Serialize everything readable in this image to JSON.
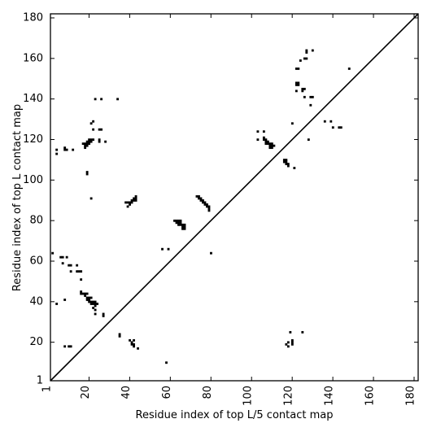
{
  "chart_data": {
    "type": "scatter",
    "title": "",
    "xlabel": "Residue index of top L/5 contact map",
    "ylabel": "Residue index of top L contact map",
    "xlim": [
      1,
      182
    ],
    "ylim": [
      1,
      182
    ],
    "xticks": [
      1,
      20,
      40,
      60,
      80,
      100,
      120,
      140,
      160,
      180
    ],
    "yticks": [
      1,
      20,
      40,
      60,
      80,
      100,
      120,
      140,
      160,
      180
    ],
    "grid": false,
    "diagonal": true,
    "marker": "square",
    "color": "#000000",
    "series": [
      {
        "points": [
          [
            2,
            64
          ],
          [
            4,
            39
          ],
          [
            6,
            62
          ],
          [
            7,
            62
          ],
          [
            7,
            59
          ],
          [
            8,
            41
          ],
          [
            8,
            18
          ],
          [
            9,
            62
          ],
          [
            10,
            58
          ],
          [
            10,
            18
          ],
          [
            11,
            58
          ],
          [
            11,
            55
          ],
          [
            11,
            18
          ],
          [
            14,
            58
          ],
          [
            14,
            55
          ],
          [
            15,
            55
          ],
          [
            16,
            55
          ],
          [
            16,
            51
          ],
          [
            16,
            45
          ],
          [
            16,
            44
          ],
          [
            17,
            44
          ],
          [
            18,
            44
          ],
          [
            18,
            43
          ],
          [
            19,
            44
          ],
          [
            19,
            42
          ],
          [
            19,
            41
          ],
          [
            20,
            42
          ],
          [
            20,
            41
          ],
          [
            20,
            40
          ],
          [
            21,
            42
          ],
          [
            21,
            40
          ],
          [
            21,
            39
          ],
          [
            22,
            40
          ],
          [
            22,
            39
          ],
          [
            22,
            37
          ],
          [
            23,
            40
          ],
          [
            23,
            39
          ],
          [
            23,
            38
          ],
          [
            23,
            36
          ],
          [
            24,
            39
          ],
          [
            23,
            34
          ],
          [
            27,
            34
          ],
          [
            27,
            33
          ],
          [
            4,
            115
          ],
          [
            4,
            113
          ],
          [
            8,
            116
          ],
          [
            8,
            115
          ],
          [
            9,
            115
          ],
          [
            12,
            115
          ],
          [
            17,
            118
          ],
          [
            18,
            118
          ],
          [
            18,
            117
          ],
          [
            18,
            116
          ],
          [
            19,
            119
          ],
          [
            19,
            118
          ],
          [
            19,
            117
          ],
          [
            20,
            120
          ],
          [
            20,
            119
          ],
          [
            20,
            118
          ],
          [
            21,
            120
          ],
          [
            21,
            119
          ],
          [
            22,
            120
          ],
          [
            21,
            128
          ],
          [
            22,
            129
          ],
          [
            22,
            125
          ],
          [
            25,
            125
          ],
          [
            26,
            125
          ],
          [
            25,
            120
          ],
          [
            25,
            119
          ],
          [
            28,
            119
          ],
          [
            23,
            140
          ],
          [
            26,
            140
          ],
          [
            34,
            140
          ],
          [
            19,
            104
          ],
          [
            19,
            103
          ],
          [
            21,
            91
          ],
          [
            38,
            89
          ],
          [
            39,
            89
          ],
          [
            39,
            87
          ],
          [
            40,
            89
          ],
          [
            40,
            88
          ],
          [
            41,
            90
          ],
          [
            41,
            89
          ],
          [
            42,
            91
          ],
          [
            42,
            90
          ],
          [
            43,
            92
          ],
          [
            43,
            91
          ],
          [
            43,
            90
          ],
          [
            35,
            24
          ],
          [
            35,
            23
          ],
          [
            40,
            21
          ],
          [
            41,
            20
          ],
          [
            41,
            19
          ],
          [
            42,
            21
          ],
          [
            42,
            19
          ],
          [
            42,
            18
          ],
          [
            44,
            17
          ],
          [
            58,
            10
          ],
          [
            56,
            66
          ],
          [
            59,
            66
          ],
          [
            62,
            80
          ],
          [
            63,
            80
          ],
          [
            63,
            79
          ],
          [
            64,
            80
          ],
          [
            64,
            79
          ],
          [
            64,
            78
          ],
          [
            65,
            80
          ],
          [
            65,
            79
          ],
          [
            65,
            78
          ],
          [
            66,
            78
          ],
          [
            66,
            77
          ],
          [
            66,
            76
          ],
          [
            67,
            78
          ],
          [
            67,
            77
          ],
          [
            67,
            76
          ],
          [
            73,
            92
          ],
          [
            74,
            92
          ],
          [
            74,
            91
          ],
          [
            75,
            91
          ],
          [
            75,
            90
          ],
          [
            76,
            90
          ],
          [
            76,
            89
          ],
          [
            77,
            89
          ],
          [
            77,
            88
          ],
          [
            78,
            88
          ],
          [
            78,
            87
          ],
          [
            79,
            87
          ],
          [
            79,
            86
          ],
          [
            79,
            85
          ],
          [
            80,
            64
          ],
          [
            103,
            124
          ],
          [
            103,
            120
          ],
          [
            106,
            124
          ],
          [
            106,
            121
          ],
          [
            106,
            120
          ],
          [
            107,
            120
          ],
          [
            107,
            119
          ],
          [
            107,
            118
          ],
          [
            108,
            119
          ],
          [
            108,
            118
          ],
          [
            109,
            118
          ],
          [
            109,
            117
          ],
          [
            109,
            116
          ],
          [
            110,
            118
          ],
          [
            110,
            117
          ],
          [
            110,
            116
          ],
          [
            111,
            117
          ],
          [
            116,
            110
          ],
          [
            116,
            109
          ],
          [
            117,
            110
          ],
          [
            117,
            109
          ],
          [
            117,
            108
          ],
          [
            118,
            108
          ],
          [
            118,
            107
          ],
          [
            120,
            128
          ],
          [
            121,
            106
          ],
          [
            122,
            148
          ],
          [
            122,
            147
          ],
          [
            123,
            148
          ],
          [
            123,
            147
          ],
          [
            122,
            155
          ],
          [
            123,
            155
          ],
          [
            122,
            144
          ],
          [
            124,
            159
          ],
          [
            125,
            145
          ],
          [
            125,
            144
          ],
          [
            126,
            145
          ],
          [
            126,
            141
          ],
          [
            126,
            160
          ],
          [
            127,
            160
          ],
          [
            127,
            163
          ],
          [
            127,
            164
          ],
          [
            128,
            120
          ],
          [
            129,
            137
          ],
          [
            129,
            141
          ],
          [
            130,
            141
          ],
          [
            130,
            164
          ],
          [
            136,
            129
          ],
          [
            139,
            129
          ],
          [
            140,
            126
          ],
          [
            143,
            126
          ],
          [
            144,
            126
          ],
          [
            148,
            155
          ],
          [
            117,
            19
          ],
          [
            118,
            20
          ],
          [
            118,
            18
          ],
          [
            119,
            25
          ],
          [
            120,
            21
          ],
          [
            120,
            20
          ],
          [
            120,
            19
          ],
          [
            125,
            25
          ]
        ]
      }
    ]
  }
}
